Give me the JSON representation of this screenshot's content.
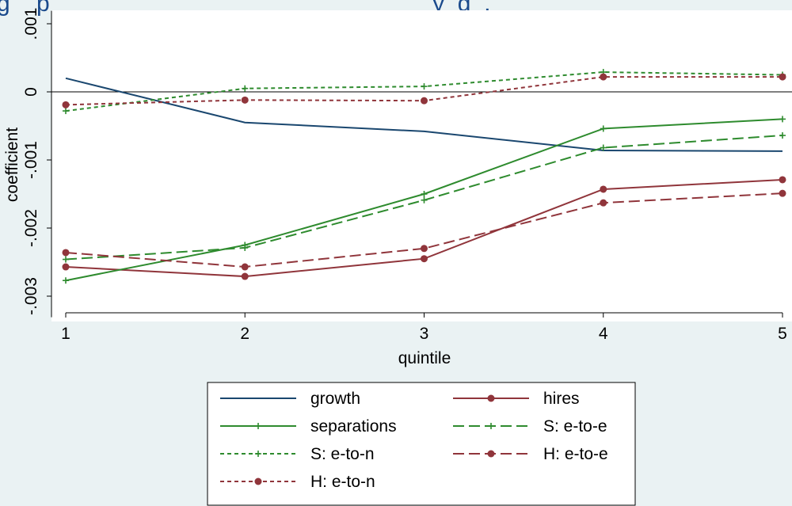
{
  "clipped_title": "g    p                                                          y  g  ,",
  "chart_data": {
    "type": "line",
    "xlabel": "quintile",
    "ylabel": "coefficient",
    "x": [
      1,
      2,
      3,
      4,
      5
    ],
    "x_ticks": [
      "1",
      "2",
      "3",
      "4",
      "5"
    ],
    "y_ticks": [
      {
        "value": 0.001,
        "label": ".001"
      },
      {
        "value": 0,
        "label": "0"
      },
      {
        "value": -0.001,
        "label": "-.001"
      },
      {
        "value": -0.002,
        "label": "-.002"
      },
      {
        "value": -0.003,
        "label": "-.003"
      }
    ],
    "xlim": [
      1,
      5
    ],
    "ylim": [
      -0.00331,
      0.00119
    ],
    "zero_line": true,
    "grid": false,
    "legend_position": "bottom",
    "series": [
      {
        "name": "growth",
        "values": [
          0.0002,
          -0.00045,
          -0.00058,
          -0.00086,
          -0.00087
        ],
        "color": "#1a476f",
        "dash": "solid",
        "marker": "none"
      },
      {
        "name": "hires",
        "values": [
          -0.00257,
          -0.00271,
          -0.00245,
          -0.00143,
          -0.00129
        ],
        "color": "#90353b",
        "dash": "solid",
        "marker": "circle"
      },
      {
        "name": "separations",
        "values": [
          -0.00277,
          -0.00225,
          -0.0015,
          -0.00054,
          -0.0004
        ],
        "color": "#2e8b2e",
        "dash": "solid",
        "marker": "plus"
      },
      {
        "name": "S: e-to-e",
        "values": [
          -0.00246,
          -0.00229,
          -0.00159,
          -0.00082,
          -0.00064
        ],
        "color": "#2e8b2e",
        "dash": "longdash",
        "marker": "plus"
      },
      {
        "name": "S: e-to-n",
        "values": [
          -0.00028,
          5e-05,
          8e-05,
          0.00029,
          0.00025
        ],
        "color": "#2e8b2e",
        "dash": "shortdash",
        "marker": "plus"
      },
      {
        "name": "H: e-to-e",
        "values": [
          -0.00236,
          -0.00257,
          -0.0023,
          -0.00163,
          -0.00149
        ],
        "color": "#90353b",
        "dash": "longdash",
        "marker": "circle"
      },
      {
        "name": "H: e-to-n",
        "values": [
          -0.00019,
          -0.00012,
          -0.00013,
          0.00022,
          0.00022
        ],
        "color": "#90353b",
        "dash": "shortdash",
        "marker": "circle"
      }
    ]
  }
}
